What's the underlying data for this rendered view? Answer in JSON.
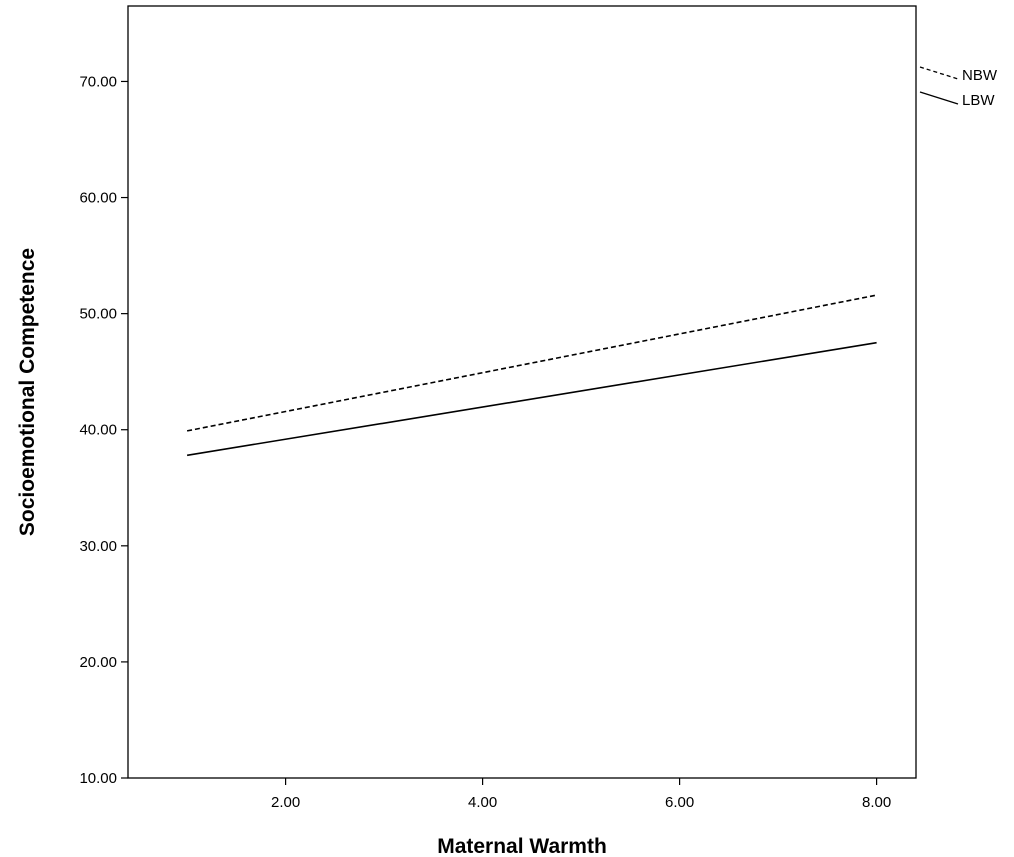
{
  "chart_data": {
    "type": "line",
    "title": "",
    "xlabel": "Maternal Warmth",
    "ylabel": "Socioemotional Competence",
    "xlim": [
      0.4,
      8.4
    ],
    "ylim": [
      10,
      76.5
    ],
    "xticks": [
      2,
      4,
      6,
      8
    ],
    "xtick_labels": [
      "2.00",
      "4.00",
      "6.00",
      "8.00"
    ],
    "yticks": [
      10,
      20,
      30,
      40,
      50,
      60,
      70
    ],
    "ytick_labels": [
      "10.00",
      "20.00",
      "30.00",
      "40.00",
      "50.00",
      "60.00",
      "70.00"
    ],
    "grid": false,
    "legend_placement": "right",
    "series": [
      {
        "name": "NBW",
        "style": "dashed",
        "color": "#000000",
        "x": [
          1,
          8
        ],
        "y": [
          39.9,
          51.6
        ]
      },
      {
        "name": "LBW",
        "style": "solid",
        "color": "#000000",
        "x": [
          1,
          8
        ],
        "y": [
          37.8,
          47.5
        ]
      }
    ]
  }
}
